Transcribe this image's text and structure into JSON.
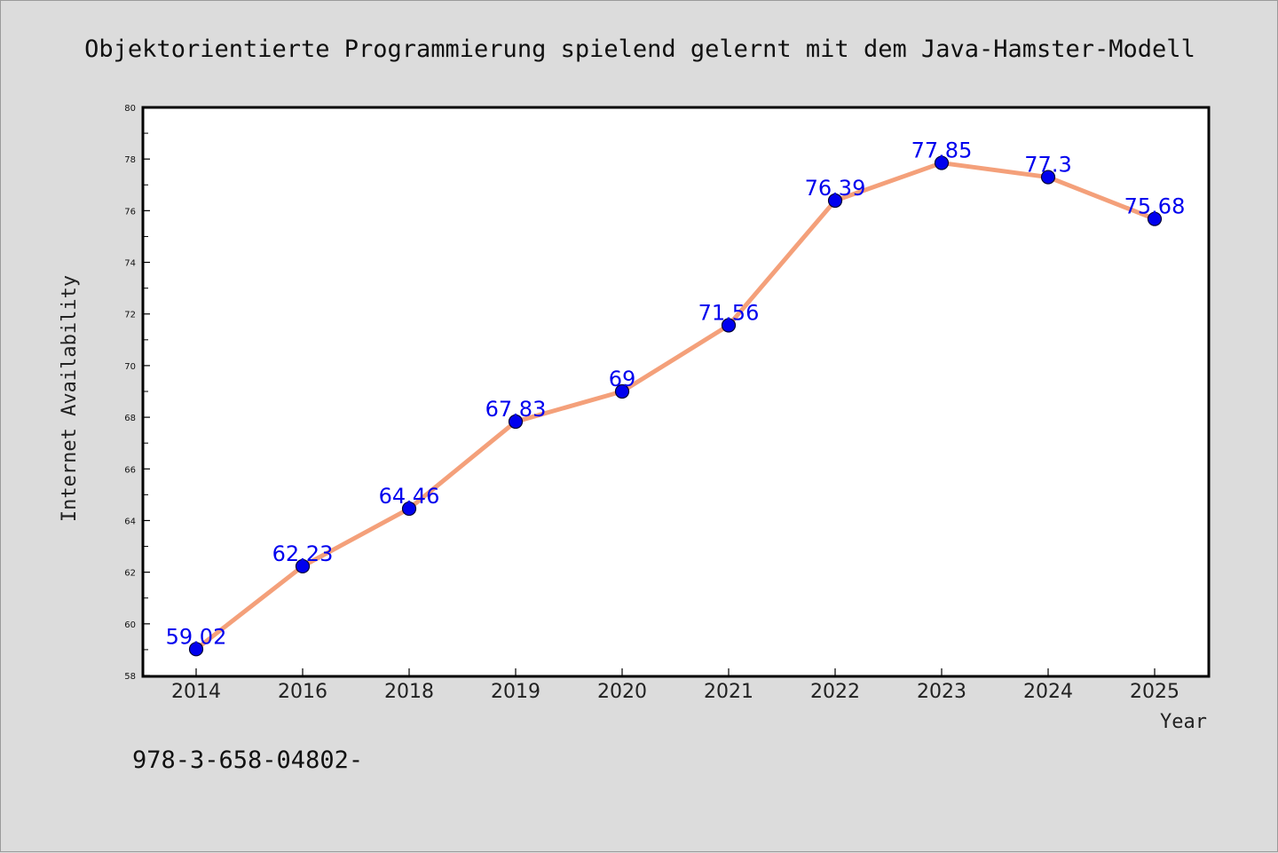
{
  "chart_data": {
    "type": "line",
    "title": "Objektorientierte Programmierung spielend gelernt mit dem Java-Hamster-Modell",
    "xlabel": "Year",
    "ylabel": "Internet Availability",
    "categories": [
      "2014",
      "2016",
      "2018",
      "2019",
      "2020",
      "2021",
      "2022",
      "2023",
      "2024",
      "2025"
    ],
    "series": [
      {
        "values": [
          59.02,
          62.23,
          64.46,
          67.83,
          69,
          71.56,
          76.39,
          77.85,
          77.3,
          75.68
        ]
      }
    ],
    "data_labels": [
      "59.02",
      "62.23",
      "64.46",
      "67.83",
      "69",
      "71.56",
      "76.39",
      "77.85",
      "77.3",
      "75.68"
    ],
    "ylim": [
      58,
      80
    ],
    "yticks": [
      58,
      60,
      62,
      64,
      66,
      68,
      70,
      72,
      74,
      76,
      78,
      80
    ],
    "grid": false,
    "colors": {
      "line": "#f4a07a",
      "marker": "#0000ee",
      "marker_edge": "#000033",
      "label": "#0000ee",
      "plot_bg": "#ffffff",
      "page_bg": "#dcdcdc"
    }
  },
  "footer": {
    "text": "978-3-658-04802-"
  }
}
